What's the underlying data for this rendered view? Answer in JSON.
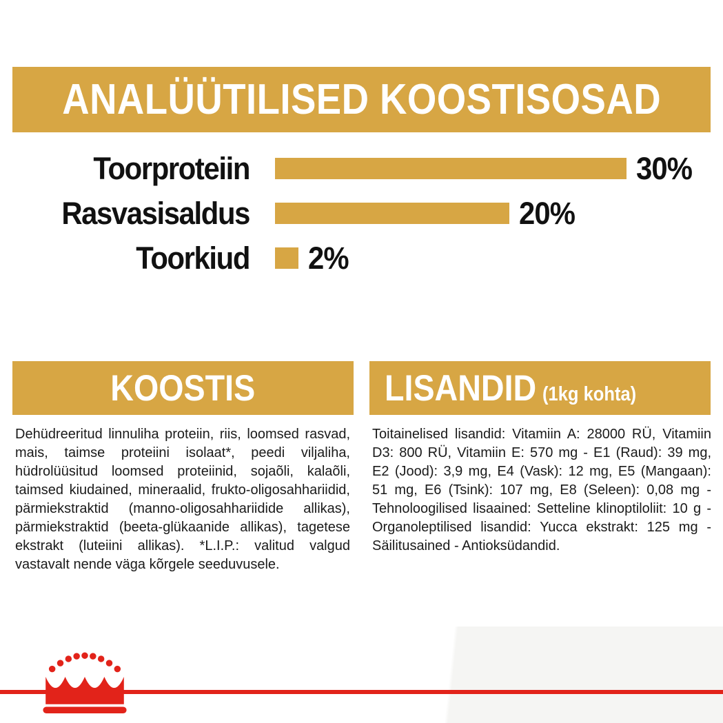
{
  "colors": {
    "gold": "#D7A644",
    "red": "#E2231A",
    "text": "#1A1A1A",
    "banner_text": "#FFFFFF"
  },
  "analytical": {
    "title": "ANALÜÜTILISED KOOSTISOSAD"
  },
  "chart_data": {
    "type": "bar",
    "orientation": "horizontal",
    "title": "ANALÜÜTILISED KOOSTISOSAD",
    "categories": [
      "Toorproteiin",
      "Rasvasisaldus",
      "Toorkiud"
    ],
    "values": [
      30,
      20,
      2
    ],
    "value_labels": [
      "30%",
      "20%",
      "2%"
    ],
    "unit": "%",
    "xlim": [
      0,
      30
    ],
    "bar_color": "#D7A644",
    "grid": false,
    "legend": false
  },
  "composition": {
    "title": "KOOSTIS",
    "body": "Dehüdreeritud linnuliha proteiin, riis, loomsed rasvad, mais, taimse proteiini isolaat*, peedi viljaliha, hüdrolüüsitud loomsed proteiinid, sojaõli, kalaõli, taimsed kiudained, mineraalid, frukto-oligosahhariidid, pärmiekstraktid (manno-oligosahhariidide allikas), pärmiekstraktid (beeta-glükaanide allikas), tagetese ekstrakt (luteiini allikas). *L.I.P.: valitud valgud vastavalt nende väga kõrgele seeduvusele."
  },
  "additives": {
    "title": "LISANDID",
    "subtitle": "(1kg kohta)",
    "body": "Toitainelised lisandid: Vitamiin A: 28000 RÜ, Vitamiin D3: 800 RÜ, Vitamiin E: 570 mg - E1 (Raud): 39 mg, E2 (Jood): 3,9 mg, E4 (Vask): 12 mg, E5 (Mangaan): 51 mg, E6 (Tsink): 107 mg, E8 (Seleen): 0,08 mg - Tehnoloogilised lisaained: Setteline klinoptiloliit: 10 g - Organoleptilised lisandid: Yucca ekstrakt: 125 mg - Säilitusained - Antioksüdandid."
  },
  "logo": {
    "name": "royal-canin-crown"
  }
}
